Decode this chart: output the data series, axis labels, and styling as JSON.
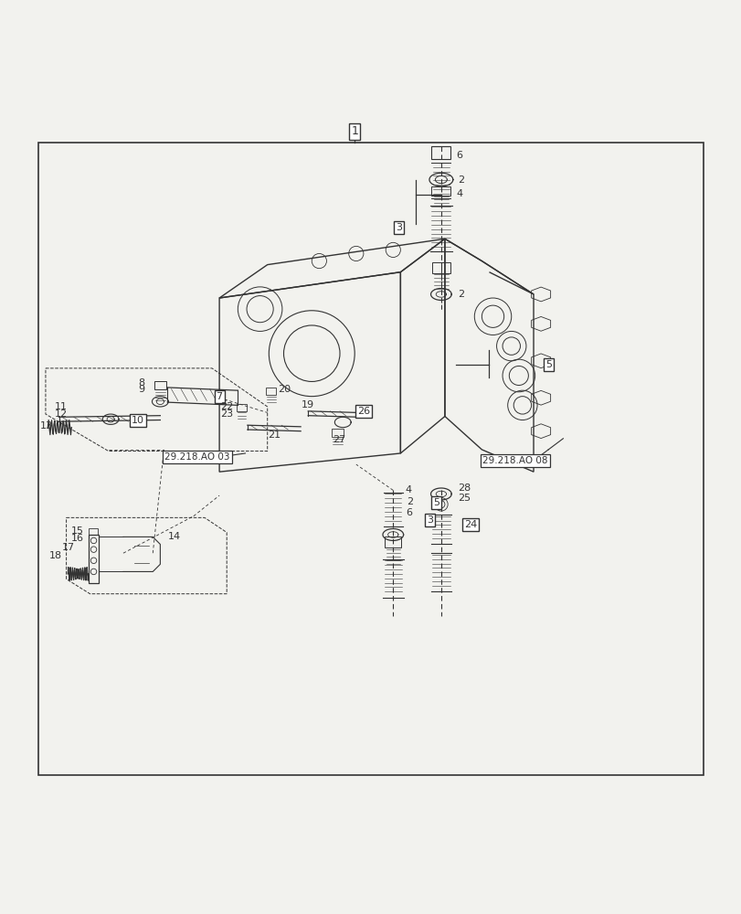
{
  "bg_color": "#f2f2ee",
  "line_color": "#333333",
  "fig_width": 8.12,
  "fig_height": 10.0,
  "dpi": 100
}
